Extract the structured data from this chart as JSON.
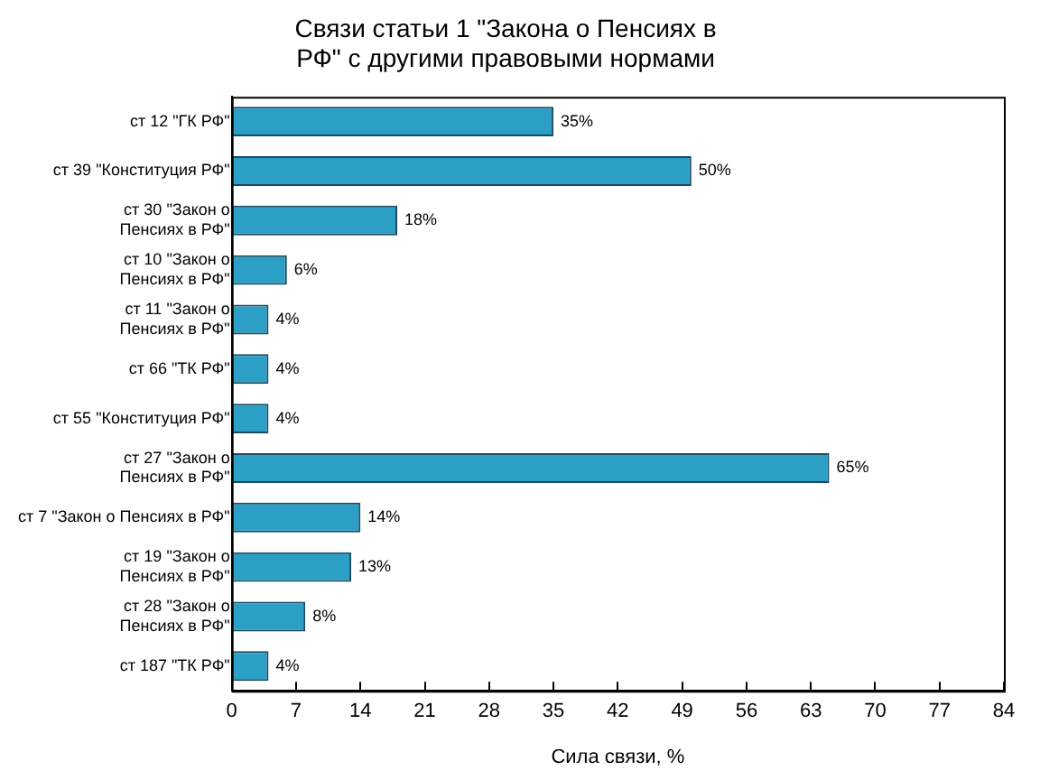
{
  "chart_data": {
    "type": "bar",
    "orientation": "horizontal",
    "title": "Связи статьи 1 \"Закона о Пенсиях в РФ\" с другими правовыми нормами",
    "xlabel": "Сила связи, %",
    "categories": [
      "ст 12 \"ГК РФ\"",
      "ст 39 \"Конституция РФ\"",
      "ст 30 \"Закон о Пенсиях в РФ\"",
      "ст 10 \"Закон о Пенсиях в РФ\"",
      "ст 11 \"Закон о Пенсиях в РФ\"",
      "ст 66 \"ТК РФ\"",
      "ст 55 \"Конституция РФ\"",
      "ст 27 \"Закон о Пенсиях в РФ\"",
      "ст 7 \"Закон о Пенсиях в РФ\"",
      "ст 19 \"Закон о Пенсиях в РФ\"",
      "ст 28 \"Закон о Пенсиях в РФ\"",
      "ст 187 \"ТК РФ\""
    ],
    "values": [
      35,
      50,
      18,
      6,
      4,
      4,
      4,
      65,
      14,
      13,
      8,
      4
    ],
    "value_labels": [
      "35%",
      "50%",
      "18%",
      "6%",
      "4%",
      "4%",
      "4%",
      "65%",
      "14%",
      "13%",
      "8%",
      "4%"
    ],
    "color": "#2b9fc6",
    "xlim": [
      0,
      84
    ],
    "xticks": [
      0,
      7,
      14,
      21,
      28,
      35,
      42,
      49,
      56,
      63,
      70,
      77,
      84
    ],
    "grid": false,
    "legend": false
  }
}
